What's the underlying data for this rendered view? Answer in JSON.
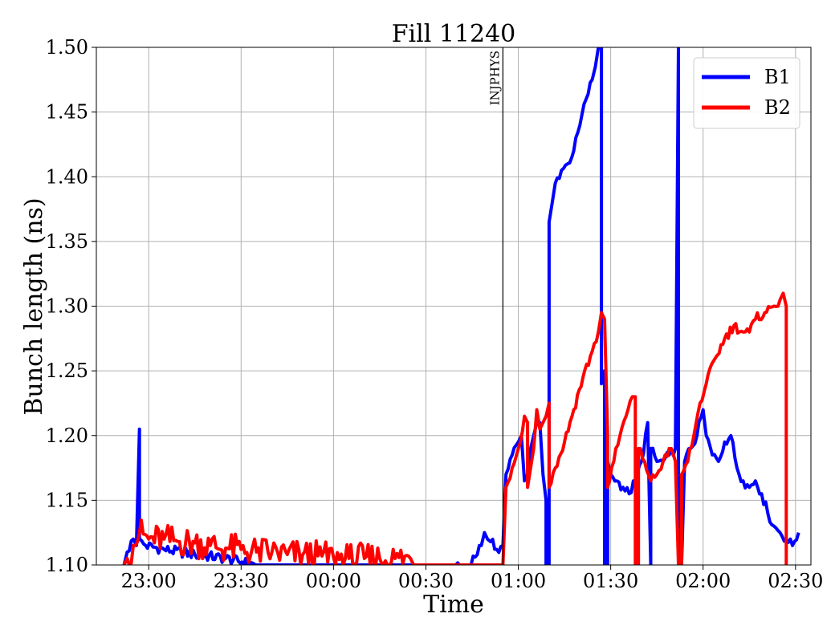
{
  "chart_data": {
    "type": "line",
    "title": "Fill 11240",
    "xlabel": "Time",
    "ylabel": "Bunch length (ns)",
    "ylim": [
      1.1,
      1.5
    ],
    "xlim": [
      "22:43",
      "02:35"
    ],
    "grid": true,
    "legend_position": "top-right",
    "x_ticks": [
      "23:00",
      "23:30",
      "00:00",
      "00:30",
      "01:00",
      "01:30",
      "02:00",
      "02:30"
    ],
    "y_ticks": [
      "1.10",
      "1.15",
      "1.20",
      "1.25",
      "1.30",
      "1.35",
      "1.40",
      "1.45",
      "1.50"
    ],
    "annotations": [
      {
        "text": "INJPHYS",
        "x": "00:55"
      }
    ],
    "series": [
      {
        "name": "B1",
        "color": "#0000ff",
        "points": [
          [
            "22:52",
            1.1
          ],
          [
            "22:53",
            1.11
          ],
          [
            "22:55",
            1.12
          ],
          [
            "22:56",
            1.115
          ],
          [
            "22:57",
            1.205
          ],
          [
            "22:57",
            1.12
          ],
          [
            "22:59",
            1.115
          ],
          [
            "23:05",
            1.112
          ],
          [
            "23:15",
            1.108
          ],
          [
            "23:25",
            1.105
          ],
          [
            "23:35",
            1.1
          ],
          [
            "00:36",
            1.095
          ],
          [
            "00:44",
            1.1
          ],
          [
            "00:48",
            1.115
          ],
          [
            "00:49",
            1.125
          ],
          [
            "00:50",
            1.12
          ],
          [
            "00:51",
            1.118
          ],
          [
            "00:53",
            1.112
          ],
          [
            "00:55",
            1.115
          ],
          [
            "00:56",
            1.17
          ],
          [
            "00:58",
            1.185
          ],
          [
            "01:00",
            1.195
          ],
          [
            "01:01",
            1.2
          ],
          [
            "01:02",
            1.165
          ],
          [
            "01:03",
            1.17
          ],
          [
            "01:04",
            1.19
          ],
          [
            "01:05",
            1.2
          ],
          [
            "01:06",
            1.21
          ],
          [
            "01:07",
            1.21
          ],
          [
            "01:08",
            1.17
          ],
          [
            "01:09",
            1.15
          ],
          [
            "01:09",
            1.1
          ],
          [
            "01:10",
            1.1
          ],
          [
            "01:10",
            1.365
          ],
          [
            "01:11",
            1.38
          ],
          [
            "01:12",
            1.395
          ],
          [
            "01:14",
            1.405
          ],
          [
            "01:16",
            1.41
          ],
          [
            "01:18",
            1.42
          ],
          [
            "01:20",
            1.44
          ],
          [
            "01:22",
            1.46
          ],
          [
            "01:24",
            1.475
          ],
          [
            "01:25",
            1.485
          ],
          [
            "01:26",
            1.5
          ],
          [
            "01:27",
            1.5
          ],
          [
            "01:27",
            1.24
          ],
          [
            "01:28",
            1.25
          ],
          [
            "01:28",
            1.1
          ],
          [
            "01:29",
            1.1
          ],
          [
            "01:29",
            1.18
          ],
          [
            "01:30",
            1.17
          ],
          [
            "01:32",
            1.165
          ],
          [
            "01:34",
            1.16
          ],
          [
            "01:36",
            1.155
          ],
          [
            "01:38",
            1.165
          ],
          [
            "01:40",
            1.18
          ],
          [
            "01:42",
            1.21
          ],
          [
            "01:43",
            1.1
          ],
          [
            "01:43",
            1.19
          ],
          [
            "01:45",
            1.18
          ],
          [
            "01:47",
            1.18
          ],
          [
            "01:49",
            1.185
          ],
          [
            "01:51",
            1.19
          ],
          [
            "01:52",
            1.5
          ],
          [
            "01:52",
            1.1
          ],
          [
            "01:53",
            1.1
          ],
          [
            "01:54",
            1.18
          ],
          [
            "01:56",
            1.19
          ],
          [
            "01:58",
            1.2
          ],
          [
            "02:00",
            1.22
          ],
          [
            "02:01",
            1.2
          ],
          [
            "02:03",
            1.185
          ],
          [
            "02:05",
            1.18
          ],
          [
            "02:07",
            1.195
          ],
          [
            "02:09",
            1.2
          ],
          [
            "02:11",
            1.175
          ],
          [
            "02:13",
            1.165
          ],
          [
            "02:15",
            1.16
          ],
          [
            "02:17",
            1.165
          ],
          [
            "02:19",
            1.155
          ],
          [
            "02:21",
            1.14
          ],
          [
            "02:23",
            1.13
          ],
          [
            "02:25",
            1.125
          ],
          [
            "02:27",
            1.12
          ],
          [
            "02:29",
            1.115
          ],
          [
            "02:31",
            1.125
          ]
        ]
      },
      {
        "name": "B2",
        "color": "#ff0000",
        "points": [
          [
            "22:52",
            1.1
          ],
          [
            "22:53",
            1.105
          ],
          [
            "22:55",
            1.115
          ],
          [
            "22:57",
            1.125
          ],
          [
            "23:00",
            1.12
          ],
          [
            "23:05",
            1.12
          ],
          [
            "23:10",
            1.118
          ],
          [
            "23:15",
            1.117
          ],
          [
            "23:20",
            1.115
          ],
          [
            "23:25",
            1.113
          ],
          [
            "23:30",
            1.112
          ],
          [
            "23:35",
            1.11
          ],
          [
            "23:40",
            1.11
          ],
          [
            "23:45",
            1.108
          ],
          [
            "23:50",
            1.108
          ],
          [
            "23:55",
            1.107
          ],
          [
            "00:00",
            1.106
          ],
          [
            "00:05",
            1.105
          ],
          [
            "00:10",
            1.105
          ],
          [
            "00:15",
            1.105
          ],
          [
            "00:20",
            1.105
          ],
          [
            "00:25",
            1.105
          ],
          [
            "00:26",
            1.1
          ],
          [
            "00:55",
            1.1
          ],
          [
            "00:56",
            1.16
          ],
          [
            "00:58",
            1.175
          ],
          [
            "01:00",
            1.19
          ],
          [
            "01:02",
            1.215
          ],
          [
            "01:03",
            1.21
          ],
          [
            "01:03",
            1.16
          ],
          [
            "01:04",
            1.175
          ],
          [
            "01:05",
            1.19
          ],
          [
            "01:06",
            1.22
          ],
          [
            "01:07",
            1.205
          ],
          [
            "01:08",
            1.21
          ],
          [
            "01:09",
            1.215
          ],
          [
            "01:10",
            1.225
          ],
          [
            "01:10",
            1.16
          ],
          [
            "01:12",
            1.175
          ],
          [
            "01:15",
            1.195
          ],
          [
            "01:18",
            1.22
          ],
          [
            "01:21",
            1.245
          ],
          [
            "01:24",
            1.265
          ],
          [
            "01:26",
            1.28
          ],
          [
            "01:27",
            1.295
          ],
          [
            "01:28",
            1.29
          ],
          [
            "01:29",
            1.2
          ],
          [
            "01:29",
            1.16
          ],
          [
            "01:31",
            1.18
          ],
          [
            "01:33",
            1.2
          ],
          [
            "01:35",
            1.215
          ],
          [
            "01:37",
            1.23
          ],
          [
            "01:38",
            1.23
          ],
          [
            "01:38",
            1.1
          ],
          [
            "01:39",
            1.1
          ],
          [
            "01:39",
            1.19
          ],
          [
            "01:41",
            1.18
          ],
          [
            "01:43",
            1.165
          ],
          [
            "01:45",
            1.17
          ],
          [
            "01:47",
            1.18
          ],
          [
            "01:49",
            1.19
          ],
          [
            "01:51",
            1.18
          ],
          [
            "01:52",
            1.1
          ],
          [
            "01:53",
            1.1
          ],
          [
            "01:53",
            1.17
          ],
          [
            "01:55",
            1.18
          ],
          [
            "01:57",
            1.2
          ],
          [
            "01:59",
            1.225
          ],
          [
            "02:01",
            1.24
          ],
          [
            "02:04",
            1.26
          ],
          [
            "02:07",
            1.275
          ],
          [
            "02:10",
            1.285
          ],
          [
            "02:13",
            1.28
          ],
          [
            "02:15",
            1.28
          ],
          [
            "02:17",
            1.29
          ],
          [
            "02:20",
            1.295
          ],
          [
            "02:23",
            1.3
          ],
          [
            "02:25",
            1.305
          ],
          [
            "02:26",
            1.31
          ],
          [
            "02:27",
            1.3
          ],
          [
            "02:27",
            1.1
          ]
        ]
      }
    ]
  }
}
